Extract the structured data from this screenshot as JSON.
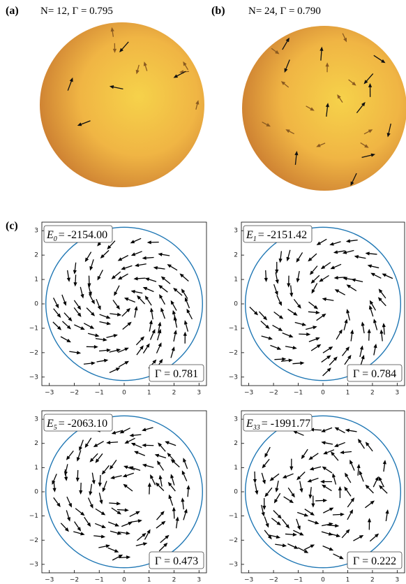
{
  "chart_data": [
    {
      "type": "sphere",
      "panel_label": "(a)",
      "title": "N= 12,  Γ = 0.795"
    },
    {
      "type": "sphere",
      "panel_label": "(b)",
      "title": "N= 24,  Γ = 0.790"
    },
    {
      "type": "quiver",
      "panel_label": "(c)",
      "energy": {
        "symbol": "E",
        "subscript": "0",
        "text": "= -2154.00"
      },
      "gamma": "Γ = 0.781",
      "circle_radius": 3.14,
      "circle_color": "#1f77b4",
      "xlim": [
        -3.3,
        3.3
      ],
      "ylim": [
        -3.35,
        3.35
      ],
      "xticks": [
        {
          "value": -3,
          "label": "−3"
        },
        {
          "value": -2,
          "label": "−2"
        },
        {
          "value": -1,
          "label": "−1"
        },
        0,
        1,
        2,
        3
      ],
      "yticks": [
        {
          "value": -3,
          "label": "−3"
        },
        {
          "value": -2,
          "label": "−2"
        },
        {
          "value": -1,
          "label": "−1"
        },
        0,
        1,
        2,
        3
      ]
    },
    {
      "type": "quiver",
      "energy": {
        "symbol": "E",
        "subscript": "1",
        "text": "= -2151.42"
      },
      "gamma": "Γ = 0.784",
      "circle_radius": 3.14,
      "circle_color": "#1f77b4",
      "xlim": [
        -3.3,
        3.3
      ],
      "ylim": [
        -3.35,
        3.35
      ],
      "xticks": [
        {
          "value": -3,
          "label": "−3"
        },
        {
          "value": -2,
          "label": "−2"
        },
        {
          "value": -1,
          "label": "−1"
        },
        0,
        1,
        2,
        3
      ],
      "yticks": [
        {
          "value": -3,
          "label": "−3"
        },
        {
          "value": -2,
          "label": "−2"
        },
        {
          "value": -1,
          "label": "−1"
        },
        0,
        1,
        2,
        3
      ]
    },
    {
      "type": "quiver",
      "energy": {
        "symbol": "E",
        "subscript": "5",
        "text": "= -2063.10"
      },
      "gamma": "Γ = 0.473",
      "circle_radius": 3.14,
      "circle_color": "#1f77b4",
      "xlim": [
        -3.3,
        3.3
      ],
      "ylim": [
        -3.35,
        3.35
      ],
      "xticks": [
        {
          "value": -3,
          "label": "−3"
        },
        {
          "value": -2,
          "label": "−2"
        },
        {
          "value": -1,
          "label": "−1"
        },
        0,
        1,
        2,
        3
      ],
      "yticks": [
        {
          "value": -3,
          "label": "−3"
        },
        {
          "value": -2,
          "label": "−2"
        },
        {
          "value": -1,
          "label": "−1"
        },
        0,
        1,
        2,
        3
      ]
    },
    {
      "type": "quiver",
      "energy": {
        "symbol": "E",
        "subscript": "33",
        "text": "= -1991.77"
      },
      "gamma": "Γ = 0.222",
      "circle_radius": 3.14,
      "circle_color": "#1f77b4",
      "xlim": [
        -3.3,
        3.3
      ],
      "ylim": [
        -3.35,
        3.35
      ],
      "xticks": [
        {
          "value": -3,
          "label": "−3"
        },
        {
          "value": -2,
          "label": "−2"
        },
        {
          "value": -1,
          "label": "−1"
        },
        0,
        1,
        2,
        3
      ],
      "yticks": [
        {
          "value": -3,
          "label": "−3"
        },
        {
          "value": -2,
          "label": "−2"
        },
        {
          "value": -1,
          "label": "−1"
        },
        0,
        1,
        2,
        3
      ]
    }
  ]
}
